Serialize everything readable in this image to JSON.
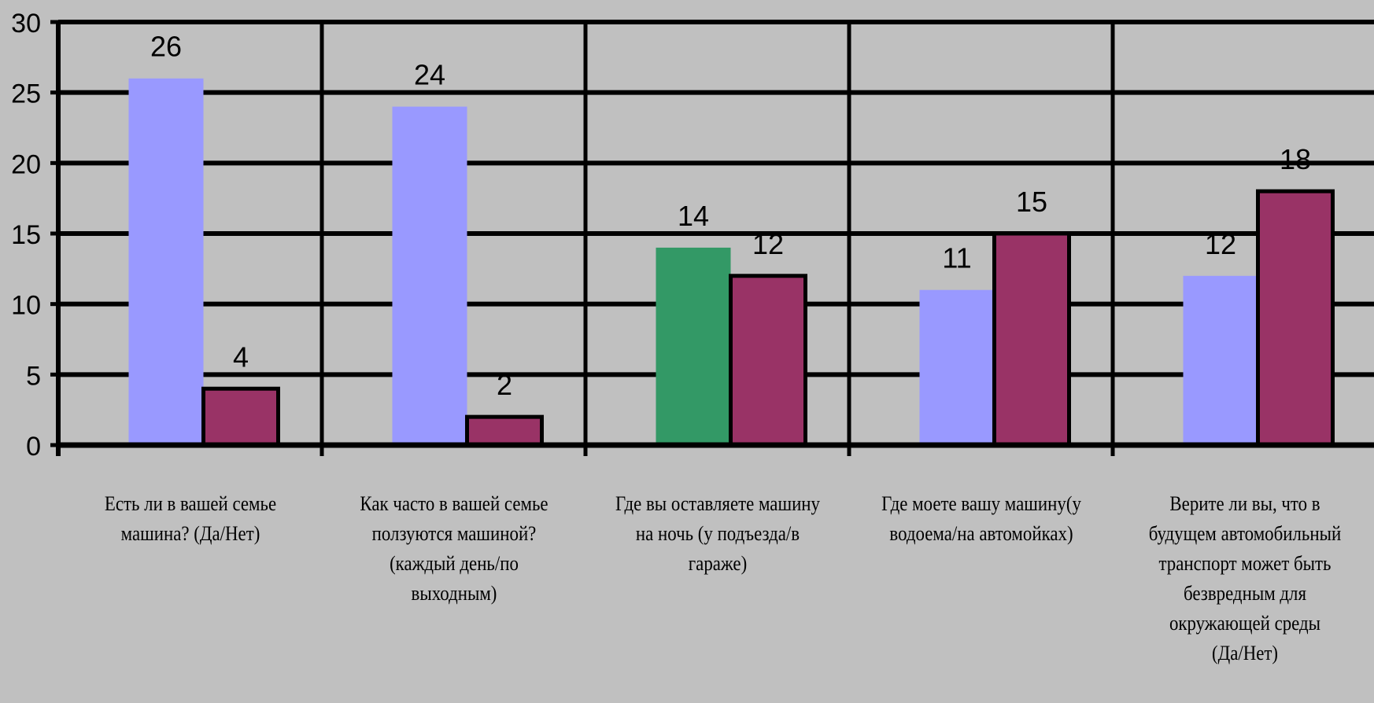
{
  "colors": {
    "background": "#c0c0c0",
    "series_default": "#9999ff",
    "series_second": "#993366",
    "highlight": "#339966",
    "grid": "#000000"
  },
  "chart_data": {
    "type": "bar",
    "title": "",
    "xlabel": "",
    "ylabel": "",
    "ylim": [
      0,
      30
    ],
    "yticks": [
      0,
      5,
      10,
      15,
      20,
      25,
      30
    ],
    "grid": true,
    "legend": "none",
    "categories": [
      "Есть ли в вашей семье машина? (Да/Нет)",
      "Как часто в вашей семье ползуются машиной? (каждый день/по выходным)",
      "Где вы оставляете машину на ночь (у подъезда/в гараже)",
      "Где моете вашу машину(у водоема/на автомойках)",
      "Верите ли вы, что в будущем автомобильный транспорт может быть безвредным для окружающей среды (Да/Нет)"
    ],
    "series": [
      {
        "values": [
          26,
          24,
          14,
          11,
          12
        ],
        "colors": [
          "#9999ff",
          "#9999ff",
          "#339966",
          "#9999ff",
          "#9999ff"
        ]
      },
      {
        "values": [
          4,
          2,
          12,
          15,
          18
        ],
        "colors": [
          "#993366",
          "#993366",
          "#993366",
          "#993366",
          "#993366"
        ]
      }
    ],
    "data_labels": [
      [
        "26",
        "24",
        "14",
        "11",
        "12"
      ],
      [
        "4",
        "2",
        "12",
        "15",
        "18"
      ]
    ],
    "category_label_lines": [
      [
        "Есть ли в вашей семье",
        "машина? (Да/Нет)"
      ],
      [
        "Как часто в вашей семье",
        "ползуются машиной?",
        "(каждый день/по",
        "выходным)"
      ],
      [
        "Где вы оставляете машину",
        "на ночь (у подъезда/в",
        "гараже)"
      ],
      [
        "Где моете вашу машину(у",
        "водоема/на автомойках)"
      ],
      [
        "Верите ли вы, что в",
        "будущем автомобильный",
        "транспорт может быть",
        "безвредным для",
        "окружающей среды",
        "(Да/Нет)"
      ]
    ]
  }
}
